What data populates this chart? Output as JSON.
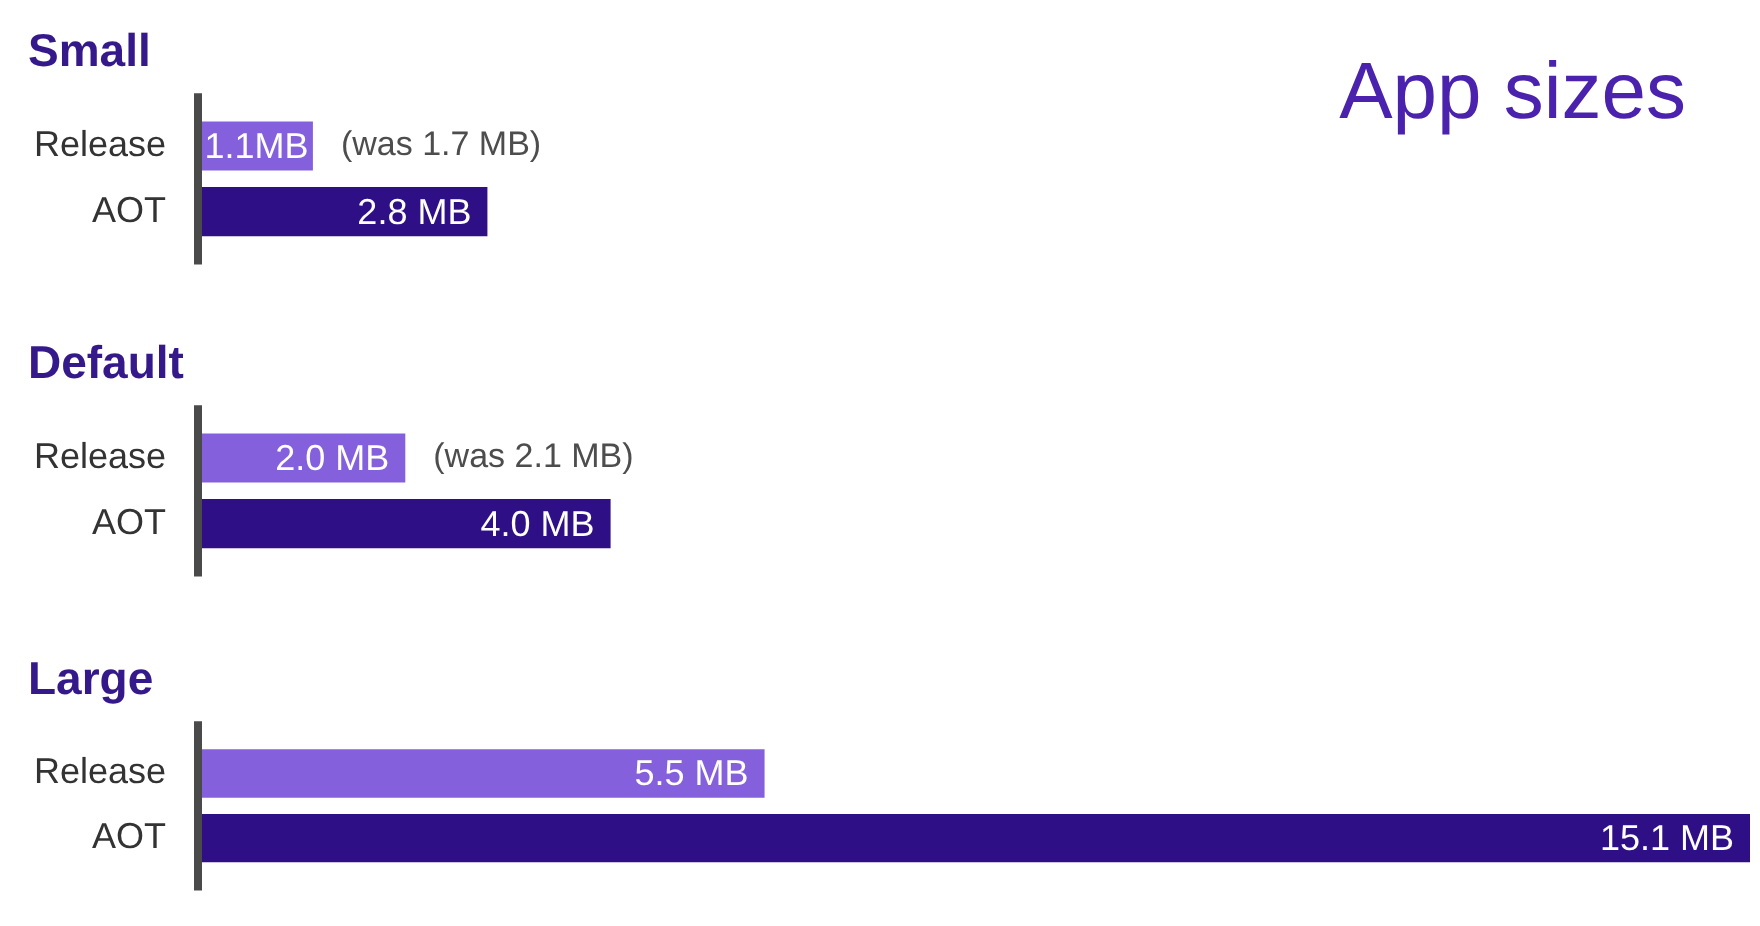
{
  "chart_data": [
    {
      "type": "bar",
      "orientation": "horizontal",
      "title": "Small",
      "categories": [
        "Release",
        "AOT"
      ],
      "values": [
        1.1,
        2.8
      ],
      "colors": [
        "#8560dd",
        "#2e0f85"
      ],
      "value_labels": [
        "1.1MB",
        "2.8 MB"
      ],
      "tick_labels": "y",
      "annotations": [
        "App sizes",
        {
          "text": "(was 1.7 MB)",
          "x": 1.1,
          "y": "Release"
        }
      ]
    },
    {
      "type": "bar",
      "orientation": "horizontal",
      "title": "Default",
      "categories": [
        "Release",
        "AOT"
      ],
      "values": [
        2.0,
        4.0
      ],
      "colors": [
        "#8560dd",
        "#2e0f85"
      ],
      "value_labels": [
        "2.0 MB",
        "4.0 MB"
      ],
      "tick_labels": "y",
      "annotations": [
        {
          "text": "(was 2.1 MB)",
          "x": 2.0,
          "y": "Release"
        }
      ]
    },
    {
      "type": "bar",
      "orientation": "horizontal",
      "title": "Large",
      "categories": [
        "Release",
        "AOT"
      ],
      "values": [
        5.5,
        15.1
      ],
      "colors": [
        "#8560dd",
        "#2e0f85"
      ],
      "value_labels": [
        "5.5 MB",
        "15.1 MB"
      ],
      "tick_labels": "y"
    }
  ]
}
